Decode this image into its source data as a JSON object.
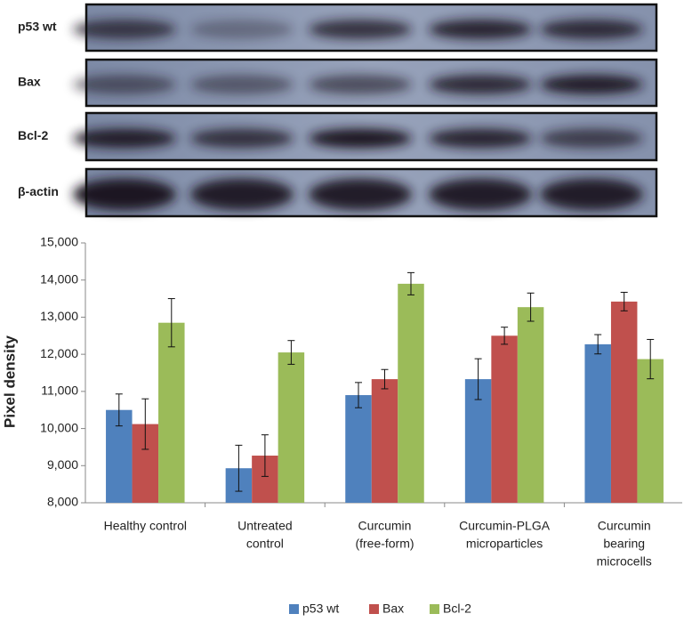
{
  "blot": {
    "rows": [
      "p53 wt",
      "Bax",
      "Bcl-2",
      "β-actin"
    ]
  },
  "chart_data": {
    "type": "bar",
    "ylabel": "Pixel density",
    "categories": [
      [
        "Healthy control"
      ],
      [
        "Untreated",
        "control"
      ],
      [
        "Curcumin",
        "(free-form)"
      ],
      [
        "Curcumin-PLGA",
        "microparticles"
      ],
      [
        "Curcumin",
        "bearing",
        "microcells"
      ]
    ],
    "series": [
      {
        "name": "p53 wt",
        "color": "#4f81bd",
        "values": [
          10500,
          8930,
          10900,
          11330,
          12270
        ],
        "errors": [
          430,
          620,
          340,
          550,
          260
        ]
      },
      {
        "name": "Bax",
        "color": "#c0504d",
        "values": [
          10120,
          9270,
          11330,
          12500,
          13420
        ],
        "errors": [
          680,
          560,
          260,
          230,
          250
        ]
      },
      {
        "name": "Bcl-2",
        "color": "#9bbb59",
        "values": [
          12850,
          12050,
          13900,
          13270,
          11870
        ],
        "errors": [
          650,
          320,
          300,
          380,
          530
        ]
      }
    ],
    "ylim": [
      8000,
      15000
    ],
    "yticks": [
      {
        "value": 8000,
        "label": "8,000"
      },
      {
        "value": 9000,
        "label": "9,000"
      },
      {
        "value": 10000,
        "label": "10,000"
      },
      {
        "value": 11000,
        "label": "11,000"
      },
      {
        "value": 12000,
        "label": "12,000"
      },
      {
        "value": 13000,
        "label": "13,000"
      },
      {
        "value": 14000,
        "label": "14,000"
      },
      {
        "value": 15000,
        "label": "15,000"
      }
    ],
    "legend": "bottom"
  }
}
